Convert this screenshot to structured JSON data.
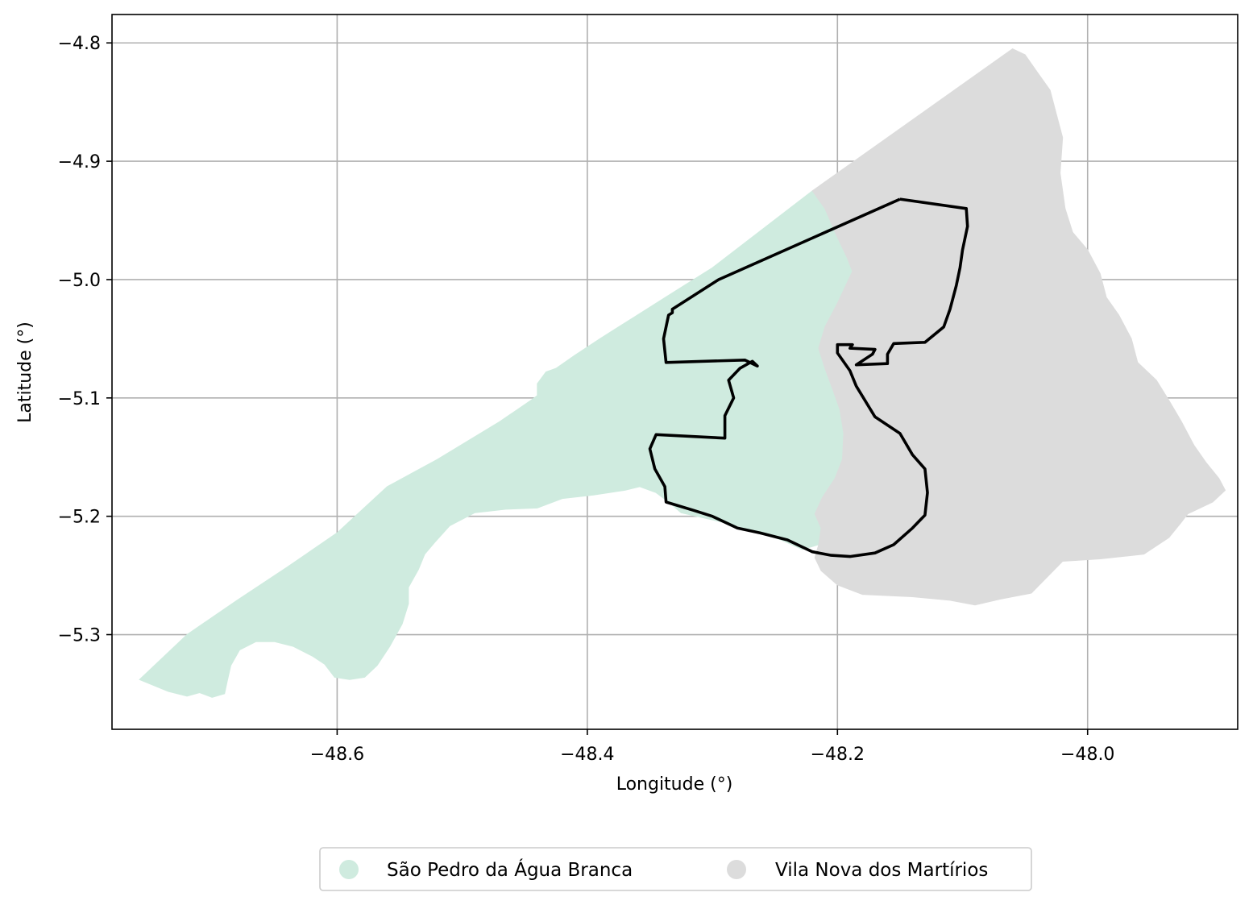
{
  "chart_data": {
    "type": "map",
    "x_axis": {
      "label": "Longitude (°)",
      "range": [
        -48.78,
        -47.88
      ],
      "ticks": [
        -48.6,
        -48.4,
        -48.2,
        -48.0
      ],
      "tick_labels": [
        "−48.6",
        "−48.4",
        "−48.2",
        "−48.0"
      ]
    },
    "y_axis": {
      "label": "Latitude (°)",
      "range": [
        -5.38,
        -4.776
      ],
      "ticks": [
        -4.8,
        -4.9,
        -5.0,
        -5.1,
        -5.2,
        -5.3
      ],
      "tick_labels": [
        "−4.8",
        "−4.9",
        "−5.0",
        "−5.1",
        "−5.2",
        "−5.3"
      ]
    },
    "grid": true,
    "legend": {
      "placement": "bottom-center, below plot",
      "entries": [
        {
          "label": "São Pedro da Água Branca",
          "color": "#cfebdf"
        },
        {
          "label": "Vila Nova dos Martírios",
          "color": "#dcdcdc"
        }
      ]
    },
    "regions": [
      {
        "name": "São Pedro da Água Branca",
        "color": "#cfebdf",
        "polygon": [
          [
            -48.735,
            -5.348
          ],
          [
            -48.72,
            -5.352
          ],
          [
            -48.71,
            -5.349
          ],
          [
            -48.7,
            -5.353
          ],
          [
            -48.69,
            -5.35
          ],
          [
            -48.688,
            -5.34
          ],
          [
            -48.685,
            -5.326
          ],
          [
            -48.678,
            -5.313
          ],
          [
            -48.665,
            -5.306
          ],
          [
            -48.65,
            -5.306
          ],
          [
            -48.635,
            -5.31
          ],
          [
            -48.62,
            -5.318
          ],
          [
            -48.61,
            -5.325
          ],
          [
            -48.602,
            -5.336
          ],
          [
            -48.59,
            -5.338
          ],
          [
            -48.578,
            -5.336
          ],
          [
            -48.568,
            -5.326
          ],
          [
            -48.558,
            -5.31
          ],
          [
            -48.548,
            -5.291
          ],
          [
            -48.543,
            -5.274
          ],
          [
            -48.543,
            -5.26
          ],
          [
            -48.535,
            -5.245
          ],
          [
            -48.53,
            -5.232
          ],
          [
            -48.522,
            -5.222
          ],
          [
            -48.51,
            -5.208
          ],
          [
            -48.49,
            -5.197
          ],
          [
            -48.465,
            -5.194
          ],
          [
            -48.44,
            -5.193
          ],
          [
            -48.42,
            -5.185
          ],
          [
            -48.395,
            -5.182
          ],
          [
            -48.37,
            -5.178
          ],
          [
            -48.358,
            -5.175
          ],
          [
            -48.345,
            -5.18
          ],
          [
            -48.335,
            -5.188
          ],
          [
            -48.325,
            -5.197
          ],
          [
            -48.3,
            -5.203
          ],
          [
            -48.28,
            -5.208
          ],
          [
            -48.262,
            -5.214
          ],
          [
            -48.245,
            -5.22
          ],
          [
            -48.228,
            -5.228
          ],
          [
            -48.215,
            -5.224
          ],
          [
            -48.213,
            -5.21
          ],
          [
            -48.218,
            -5.198
          ],
          [
            -48.212,
            -5.184
          ],
          [
            -48.202,
            -5.168
          ],
          [
            -48.196,
            -5.152
          ],
          [
            -48.195,
            -5.13
          ],
          [
            -48.198,
            -5.11
          ],
          [
            -48.204,
            -5.092
          ],
          [
            -48.21,
            -5.075
          ],
          [
            -48.215,
            -5.058
          ],
          [
            -48.21,
            -5.04
          ],
          [
            -48.2,
            -5.02
          ],
          [
            -48.188,
            -4.993
          ],
          [
            -48.192,
            -4.982
          ],
          [
            -48.201,
            -4.962
          ],
          [
            -48.21,
            -4.94
          ],
          [
            -48.22,
            -4.925
          ],
          [
            -48.3,
            -4.99
          ],
          [
            -48.33,
            -5.01
          ],
          [
            -48.36,
            -5.03
          ],
          [
            -48.39,
            -5.05
          ],
          [
            -48.41,
            -5.064
          ],
          [
            -48.425,
            -5.075
          ],
          [
            -48.433,
            -5.078
          ],
          [
            -48.44,
            -5.088
          ],
          [
            -48.44,
            -5.098
          ],
          [
            -48.445,
            -5.102
          ],
          [
            -48.47,
            -5.12
          ],
          [
            -48.52,
            -5.152
          ],
          [
            -48.56,
            -5.175
          ],
          [
            -48.6,
            -5.214
          ],
          [
            -48.64,
            -5.243
          ],
          [
            -48.68,
            -5.271
          ],
          [
            -48.72,
            -5.3
          ],
          [
            -48.758,
            -5.338
          ]
        ]
      },
      {
        "name": "Vila Nova dos Martírios",
        "color": "#dcdcdc",
        "polygon": [
          [
            -48.22,
            -4.925
          ],
          [
            -48.06,
            -4.805
          ],
          [
            -48.05,
            -4.81
          ],
          [
            -48.04,
            -4.825
          ],
          [
            -48.03,
            -4.84
          ],
          [
            -48.025,
            -4.86
          ],
          [
            -48.02,
            -4.88
          ],
          [
            -48.022,
            -4.91
          ],
          [
            -48.018,
            -4.94
          ],
          [
            -48.012,
            -4.96
          ],
          [
            -48.0,
            -4.975
          ],
          [
            -47.99,
            -4.995
          ],
          [
            -47.985,
            -5.015
          ],
          [
            -47.975,
            -5.03
          ],
          [
            -47.965,
            -5.05
          ],
          [
            -47.96,
            -5.07
          ],
          [
            -47.945,
            -5.085
          ],
          [
            -47.935,
            -5.102
          ],
          [
            -47.925,
            -5.12
          ],
          [
            -47.915,
            -5.14
          ],
          [
            -47.905,
            -5.155
          ],
          [
            -47.895,
            -5.168
          ],
          [
            -47.89,
            -5.178
          ],
          [
            -47.9,
            -5.188
          ],
          [
            -47.92,
            -5.198
          ],
          [
            -47.925,
            -5.205
          ],
          [
            -47.935,
            -5.218
          ],
          [
            -47.955,
            -5.232
          ],
          [
            -47.99,
            -5.236
          ],
          [
            -48.02,
            -5.238
          ],
          [
            -48.045,
            -5.265
          ],
          [
            -48.07,
            -5.27
          ],
          [
            -48.09,
            -5.275
          ],
          [
            -48.11,
            -5.271
          ],
          [
            -48.14,
            -5.268
          ],
          [
            -48.18,
            -5.266
          ],
          [
            -48.2,
            -5.258
          ],
          [
            -48.213,
            -5.246
          ],
          [
            -48.218,
            -5.235
          ],
          [
            -48.215,
            -5.224
          ],
          [
            -48.213,
            -5.21
          ],
          [
            -48.218,
            -5.198
          ],
          [
            -48.212,
            -5.184
          ],
          [
            -48.202,
            -5.168
          ],
          [
            -48.196,
            -5.152
          ],
          [
            -48.195,
            -5.13
          ],
          [
            -48.198,
            -5.11
          ],
          [
            -48.204,
            -5.092
          ],
          [
            -48.21,
            -5.075
          ],
          [
            -48.215,
            -5.058
          ],
          [
            -48.21,
            -5.04
          ],
          [
            -48.2,
            -5.02
          ],
          [
            -48.188,
            -4.993
          ],
          [
            -48.192,
            -4.982
          ],
          [
            -48.201,
            -4.962
          ],
          [
            -48.21,
            -4.94
          ]
        ]
      }
    ],
    "outline": {
      "color": "#000000",
      "path": [
        [
          -48.15,
          -4.932
        ],
        [
          -48.097,
          -4.94
        ],
        [
          -48.096,
          -4.955
        ],
        [
          -48.1,
          -4.975
        ],
        [
          -48.102,
          -4.99
        ],
        [
          -48.105,
          -5.005
        ],
        [
          -48.11,
          -5.025
        ],
        [
          -48.115,
          -5.04
        ],
        [
          -48.13,
          -5.053
        ],
        [
          -48.155,
          -5.054
        ],
        [
          -48.16,
          -5.063
        ],
        [
          -48.16,
          -5.071
        ],
        [
          -48.185,
          -5.072
        ],
        [
          -48.172,
          -5.063
        ],
        [
          -48.17,
          -5.059
        ],
        [
          -48.19,
          -5.058
        ],
        [
          -48.188,
          -5.055
        ],
        [
          -48.2,
          -5.055
        ],
        [
          -48.2,
          -5.062
        ],
        [
          -48.19,
          -5.077
        ],
        [
          -48.185,
          -5.09
        ],
        [
          -48.17,
          -5.116
        ],
        [
          -48.15,
          -5.13
        ],
        [
          -48.14,
          -5.148
        ],
        [
          -48.13,
          -5.16
        ],
        [
          -48.128,
          -5.18
        ],
        [
          -48.13,
          -5.199
        ],
        [
          -48.14,
          -5.21
        ],
        [
          -48.155,
          -5.224
        ],
        [
          -48.17,
          -5.231
        ],
        [
          -48.19,
          -5.234
        ],
        [
          -48.205,
          -5.233
        ],
        [
          -48.22,
          -5.23
        ],
        [
          -48.24,
          -5.22
        ],
        [
          -48.262,
          -5.214
        ],
        [
          -48.28,
          -5.21
        ],
        [
          -48.3,
          -5.2
        ],
        [
          -48.315,
          -5.195
        ],
        [
          -48.337,
          -5.188
        ],
        [
          -48.338,
          -5.175
        ],
        [
          -48.346,
          -5.16
        ],
        [
          -48.35,
          -5.143
        ],
        [
          -48.345,
          -5.131
        ],
        [
          -48.29,
          -5.134
        ],
        [
          -48.29,
          -5.115
        ],
        [
          -48.283,
          -5.1
        ],
        [
          -48.287,
          -5.085
        ],
        [
          -48.278,
          -5.075
        ],
        [
          -48.268,
          -5.069
        ],
        [
          -48.264,
          -5.073
        ],
        [
          -48.274,
          -5.068
        ],
        [
          -48.337,
          -5.07
        ],
        [
          -48.339,
          -5.05
        ],
        [
          -48.335,
          -5.03
        ],
        [
          -48.332,
          -5.028
        ],
        [
          -48.332,
          -5.025
        ],
        [
          -48.295,
          -5.0
        ],
        [
          -48.15,
          -4.932
        ]
      ]
    }
  }
}
